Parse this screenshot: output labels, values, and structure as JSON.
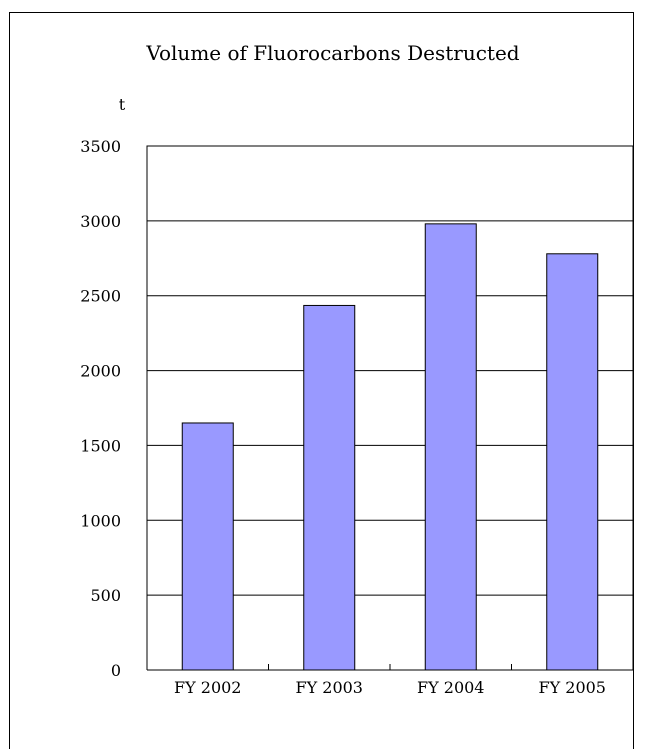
{
  "chart_data": {
    "type": "bar",
    "title": "Volume of Fluorocarbons Destructed",
    "ylabel": "t",
    "xlabel": "",
    "categories": [
      "FY 2002",
      "FY 2003",
      "FY 2004",
      "FY 2005"
    ],
    "values": [
      1650,
      2435,
      2980,
      2780
    ],
    "ylim": [
      0,
      3500
    ],
    "yticks": [
      0,
      500,
      1000,
      1500,
      2000,
      2500,
      3000,
      3500
    ],
    "grid": true,
    "legend": "none",
    "colors": {
      "bar_fill": "#9999ff",
      "bar_stroke": "#000000",
      "grid": "#000000",
      "axis": "#000000"
    }
  }
}
